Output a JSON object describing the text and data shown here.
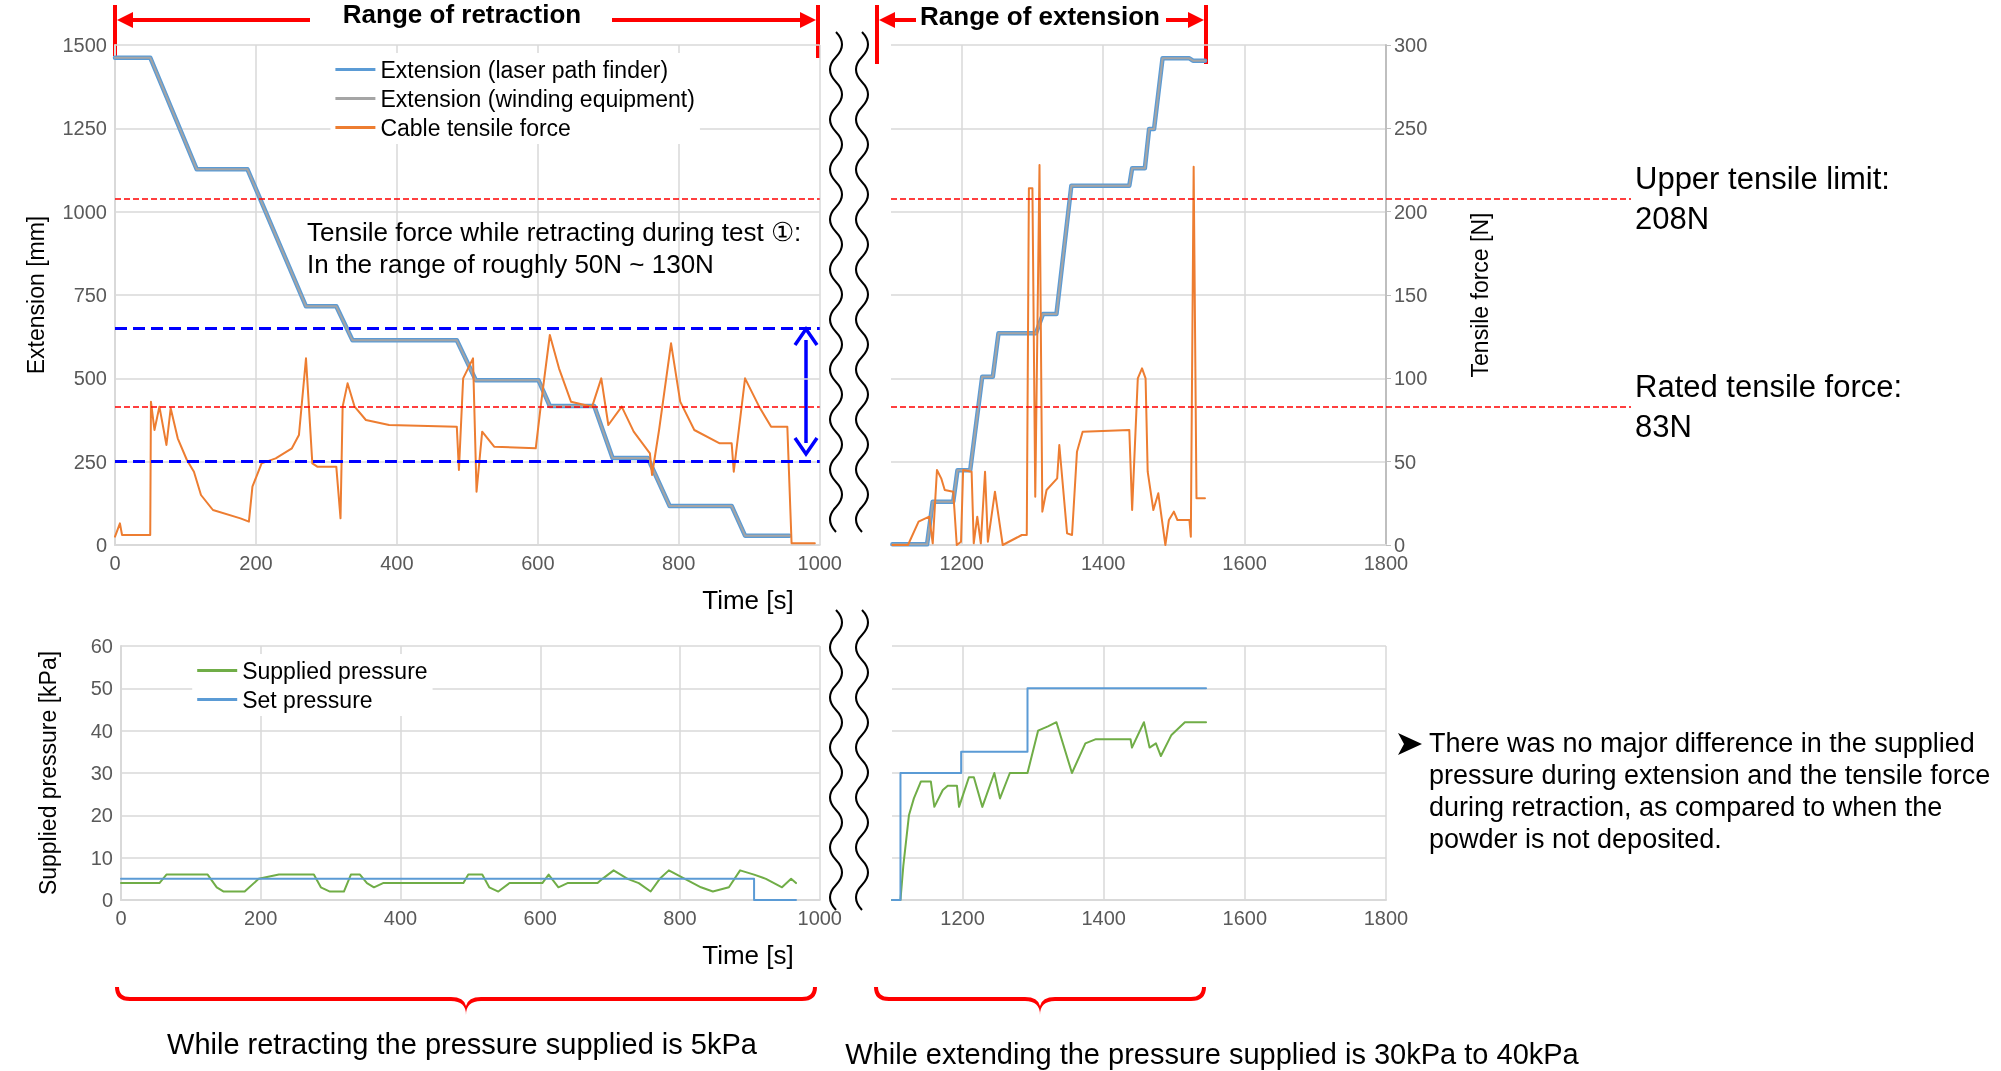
{
  "chart_data": [
    {
      "type": "line",
      "xlabel": "Time [s]",
      "ylabel": "Extension [mm]",
      "xlim": [
        0,
        1000
      ],
      "xticks": [
        0,
        200,
        400,
        600,
        800,
        1000
      ],
      "ylim": [
        0,
        1500
      ],
      "yticks": [
        0,
        250,
        500,
        750,
        1000,
        1250,
        1500
      ],
      "y2lim": [
        0,
        300
      ],
      "grid": true,
      "legend": "top",
      "marker": "none",
      "annotations": [
        "Range of retraction",
        "Tensile force while retracting during test ①:\nIn the range of roughly 50N ~ 130N"
      ],
      "ref_lines": [
        {
          "axis": "y2",
          "value": 208,
          "label": null,
          "color": "#ff0000",
          "line_style": "dashed"
        },
        {
          "axis": "y2",
          "value": 83,
          "label": null,
          "color": "#ff0000",
          "line_style": "dashed"
        },
        {
          "axis": "y2",
          "value": 130,
          "label": null,
          "color": "#0000ff",
          "line_style": "dashed"
        },
        {
          "axis": "y2",
          "value": 50,
          "label": null,
          "color": "#0000ff",
          "line_style": "dashed"
        }
      ],
      "series": [
        {
          "name": "Extension (laser path finder)",
          "color": "#5b9bd5",
          "x": [
            0,
            50,
            116,
            188,
            271,
            314,
            337,
            485,
            512,
            601,
            617,
            680,
            706,
            756,
            787,
            875,
            894,
            957
          ],
          "values": [
            1462,
            1462,
            1127,
            1127,
            716,
            716,
            614,
            614,
            494,
            494,
            417,
            417,
            261,
            261,
            117,
            117,
            28,
            28
          ]
        },
        {
          "name": "Extension (winding equipment)",
          "color": "#a5a5a5",
          "x": [
            0,
            50,
            116,
            188,
            271,
            314,
            337,
            485,
            512,
            601,
            617,
            680,
            706,
            756,
            787,
            875,
            894,
            957
          ],
          "values": [
            1462,
            1462,
            1127,
            1127,
            716,
            716,
            614,
            614,
            494,
            494,
            417,
            417,
            261,
            261,
            117,
            117,
            28,
            28
          ]
        },
        {
          "name": "Cable tensile force",
          "color": "#ed7d31",
          "axis": "y2",
          "x": [
            0,
            7,
            10,
            50,
            51,
            56,
            63,
            73,
            79,
            89,
            102,
            112,
            122,
            139,
            178,
            190,
            195,
            208,
            228,
            251,
            261,
            271,
            280,
            287,
            314,
            320,
            323,
            330,
            340,
            356,
            389,
            485,
            488,
            494,
            508,
            513,
            521,
            538,
            597,
            604,
            617,
            630,
            647,
            677,
            690,
            700,
            719,
            736,
            759,
            762,
            772,
            789,
            802,
            822,
            858,
            875,
            878,
            894,
            914,
            931,
            954,
            960,
            993
          ],
          "values": [
            5,
            13,
            6,
            6,
            86,
            69,
            83,
            60,
            82,
            64,
            51,
            44,
            30,
            21,
            16,
            14,
            35,
            49,
            52,
            58,
            66,
            112,
            49,
            47,
            47,
            16,
            83,
            97,
            83,
            75,
            72,
            71,
            45,
            100,
            112,
            32,
            68,
            59,
            58,
            83,
            126,
            106,
            86,
            83,
            100,
            72,
            83,
            68,
            55,
            42,
            69,
            121,
            86,
            69,
            61,
            61,
            44,
            100,
            83,
            71,
            71,
            1,
            1
          ]
        }
      ]
    },
    {
      "type": "line",
      "y2label": "Tensile force [N]",
      "xlim": [
        1100,
        1800
      ],
      "xticks": [
        1200,
        1400,
        1600,
        1800
      ],
      "ylim": [
        0,
        1500
      ],
      "y2lim": [
        0,
        300
      ],
      "y2ticks": [
        0,
        50,
        100,
        150,
        200,
        250,
        300
      ],
      "grid": true,
      "marker": "none",
      "annotations": [
        "Range of extension"
      ],
      "ref_lines": [
        {
          "axis": "y2",
          "value": 208,
          "label": "Upper tensile limit: 208N",
          "color": "#ff0000",
          "line_style": "dashed"
        },
        {
          "axis": "y2",
          "value": 83,
          "label": "Rated tensile force: 83N",
          "color": "#ff0000",
          "line_style": "dashed"
        }
      ],
      "series": [
        {
          "color": "#5b9bd5",
          "x": [
            1102,
            1151,
            1159,
            1188,
            1194,
            1212,
            1229,
            1244,
            1252,
            1305,
            1315,
            1334,
            1355,
            1437,
            1441,
            1459,
            1465,
            1472,
            1484,
            1522,
            1527,
            1544
          ],
          "values": [
            2,
            2,
            130,
            130,
            224,
            224,
            505,
            505,
            635,
            635,
            693,
            693,
            1078,
            1078,
            1130,
            1130,
            1248,
            1248,
            1460,
            1460,
            1453,
            1453
          ]
        },
        {
          "color": "#a5a5a5",
          "x": [
            1102,
            1151,
            1159,
            1188,
            1194,
            1212,
            1229,
            1244,
            1252,
            1305,
            1315,
            1334,
            1355,
            1437,
            1441,
            1459,
            1465,
            1472,
            1484,
            1522,
            1527,
            1544
          ],
          "values": [
            2,
            2,
            130,
            130,
            224,
            224,
            505,
            505,
            635,
            635,
            693,
            693,
            1078,
            1078,
            1130,
            1130,
            1248,
            1248,
            1460,
            1460,
            1453,
            1453
          ]
        },
        {
          "color": "#ed7d31",
          "axis": "y2",
          "x": [
            1102,
            1124,
            1139,
            1154,
            1159,
            1165,
            1171,
            1176,
            1188,
            1193,
            1199,
            1202,
            1214,
            1217,
            1222,
            1227,
            1233,
            1237,
            1247,
            1258,
            1285,
            1292,
            1295,
            1300,
            1304,
            1310,
            1314,
            1320,
            1335,
            1338,
            1349,
            1356,
            1363,
            1371,
            1437,
            1441,
            1449,
            1455,
            1460,
            1463,
            1471,
            1478,
            1488,
            1493,
            1500,
            1505,
            1522,
            1524,
            1528,
            1532,
            1544
          ],
          "values": [
            0,
            0,
            14,
            17,
            1,
            45,
            40,
            33,
            32,
            0,
            2,
            45,
            44,
            1,
            17,
            1,
            44,
            2,
            32,
            0,
            6,
            6,
            214,
            214,
            29,
            228,
            20,
            33,
            40,
            60,
            7,
            6,
            56,
            68,
            69,
            21,
            100,
            106,
            100,
            44,
            21,
            31,
            0,
            15,
            20,
            15,
            15,
            5,
            227,
            28,
            28
          ]
        }
      ]
    },
    {
      "type": "line",
      "xlabel": "Time [s]",
      "ylabel": "Supplied pressure [kPa]",
      "xlim": [
        0,
        1000
      ],
      "xticks": [
        0,
        200,
        400,
        600,
        800,
        1000
      ],
      "ylim": [
        0,
        60
      ],
      "yticks": [
        0,
        10,
        20,
        30,
        40,
        50,
        60
      ],
      "grid": true,
      "legend": "top left",
      "marker": "none",
      "annotations": [
        "While retracting the pressure supplied is 5kPa"
      ],
      "series": [
        {
          "name": "Supplied pressure",
          "color": "#70ad47",
          "x": [
            0,
            55,
            65,
            124,
            137,
            147,
            177,
            197,
            226,
            276,
            286,
            299,
            319,
            329,
            342,
            352,
            362,
            375,
            490,
            497,
            517,
            527,
            540,
            556,
            603,
            612,
            626,
            639,
            682,
            689,
            705,
            725,
            741,
            758,
            771,
            784,
            807,
            830,
            847,
            870,
            886,
            906,
            923,
            946,
            959,
            966
          ],
          "values": [
            4,
            4,
            6,
            6,
            3,
            2,
            2,
            5,
            6,
            6,
            3,
            2,
            2,
            6,
            6,
            4,
            3,
            4,
            4,
            6,
            6,
            3,
            2,
            4,
            4,
            6,
            3,
            4,
            4,
            5,
            7,
            5,
            4,
            2,
            5,
            7,
            5,
            3,
            2,
            3,
            7,
            6,
            5,
            3,
            5,
            4
          ]
        },
        {
          "name": "Set pressure",
          "color": "#5b9bd5",
          "x": [
            0,
            906,
            906,
            966
          ],
          "values": [
            5,
            5,
            0,
            0
          ]
        }
      ]
    },
    {
      "type": "line",
      "xlim": [
        1100,
        1800
      ],
      "xticks": [
        1200,
        1400,
        1600,
        1800
      ],
      "ylim": [
        0,
        60
      ],
      "tick_labels": "x",
      "grid": true,
      "marker": "none",
      "annotations": [
        "There was no major difference in the supplied pressure during extension and the tensile force during retraction, as compared to when the powder is not deposited.",
        "While extending the pressure supplied is 30kPa to 40kPa"
      ],
      "series": [
        {
          "color": "#70ad47",
          "x": [
            1100,
            1112,
            1116,
            1124,
            1131,
            1141,
            1155,
            1160,
            1172,
            1179,
            1192,
            1195,
            1209,
            1216,
            1228,
            1245,
            1253,
            1267,
            1292,
            1307,
            1321,
            1333,
            1355,
            1374,
            1389,
            1438,
            1440,
            1457,
            1465,
            1474,
            1481,
            1496,
            1515,
            1545
          ],
          "values": [
            0,
            0,
            8,
            20,
            24,
            28,
            28,
            22,
            26,
            27,
            27,
            22,
            29,
            29,
            22,
            30,
            24,
            30,
            30,
            40,
            41,
            42,
            30,
            37,
            38,
            38,
            36,
            42,
            36,
            37,
            34,
            39,
            42,
            42
          ]
        },
        {
          "color": "#5b9bd5",
          "x": [
            1100,
            1112,
            1112,
            1198,
            1198,
            1292,
            1292,
            1545
          ],
          "values": [
            0,
            0,
            30,
            30,
            35,
            35,
            50,
            50
          ]
        }
      ]
    }
  ]
}
